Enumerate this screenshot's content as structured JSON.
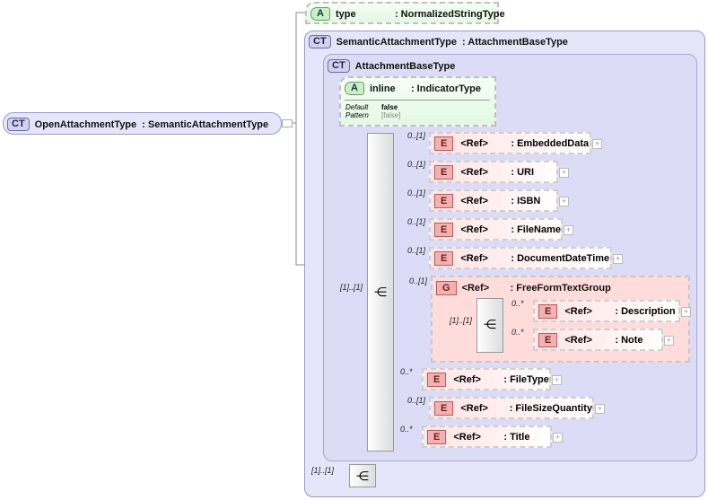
{
  "root": {
    "badge": "CT",
    "name": "OpenAttachmentType",
    "type": ": SemanticAttachmentType"
  },
  "type_attr": {
    "badge": "A",
    "name": "type",
    "type": ": NormalizedStringType"
  },
  "semantic": {
    "badge": "CT",
    "name": "SemanticAttachmentType",
    "type": ": AttachmentBaseType"
  },
  "base": {
    "badge": "CT",
    "name": "AttachmentBaseType"
  },
  "inline_attr": {
    "badge": "A",
    "name": "inline",
    "type": ": IndicatorType",
    "default_label": "Default",
    "default_value": "false",
    "pattern_label": "Pattern",
    "pattern_value": "[false]"
  },
  "sequence_card": "[1]..[1]",
  "bottom_card": "[1]..[1]",
  "elements": [
    {
      "card": "0..[1]",
      "badge": "E",
      "ref": "<Ref>",
      "type": ": EmbeddedData"
    },
    {
      "card": "0..[1]",
      "badge": "E",
      "ref": "<Ref>",
      "type": ": URI"
    },
    {
      "card": "0..[1]",
      "badge": "E",
      "ref": "<Ref>",
      "type": ": ISBN"
    },
    {
      "card": "0..[1]",
      "badge": "E",
      "ref": "<Ref>",
      "type": ": FileName"
    },
    {
      "card": "0..[1]",
      "badge": "E",
      "ref": "<Ref>",
      "type": ": DocumentDateTime"
    },
    {
      "card": "0..*",
      "badge": "E",
      "ref": "<Ref>",
      "type": ": FileType"
    },
    {
      "card": "0..[1]",
      "badge": "E",
      "ref": "<Ref>",
      "type": ": FileSizeQuantity"
    },
    {
      "card": "0..*",
      "badge": "E",
      "ref": "<Ref>",
      "type": ": Title"
    }
  ],
  "group": {
    "card": "0..[1]",
    "badge": "G",
    "ref": "<Ref>",
    "type": ": FreeFormTextGroup",
    "seq_card": "[1]..[1]",
    "children": [
      {
        "card": "0..*",
        "badge": "E",
        "ref": "<Ref>",
        "type": ": Description"
      },
      {
        "card": "0..*",
        "badge": "E",
        "ref": "<Ref>",
        "type": ": Note"
      }
    ]
  }
}
